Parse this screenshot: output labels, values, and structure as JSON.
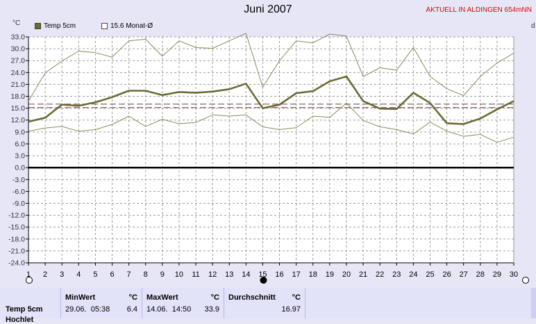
{
  "header": {
    "title": "Juni 2007",
    "station": "AKTUELL IN ALDINGEN 654mNN",
    "unit": "°C",
    "right_cut": "d"
  },
  "legend": {
    "series_label": "Temp 5cm",
    "avg_label": "15.6 Monat-Ø"
  },
  "colors": {
    "main": "#6b6b36",
    "band": "#8a8a5a",
    "avg": "#6b3b3b",
    "grid": "#9a9a9a",
    "zero": "#000000"
  },
  "chart_data": {
    "type": "line",
    "title": "Juni 2007",
    "ylabel": "°C",
    "ylim": [
      -24,
      33
    ],
    "yticks": [
      "33.0",
      "30.0",
      "27.0",
      "24.0",
      "21.0",
      "18.0",
      "15.0",
      "12.0",
      "9.0",
      "6.0",
      "3.0",
      "0.0",
      "-3.0",
      "-6.0",
      "-9.0",
      "-12.0",
      "-15.0",
      "-18.0",
      "-21.0",
      "-24.0"
    ],
    "x": [
      "1",
      "2",
      "3",
      "4",
      "5",
      "6",
      "7",
      "8",
      "9",
      "10",
      "11",
      "12",
      "13",
      "14",
      "15",
      "16",
      "17",
      "18",
      "19",
      "20",
      "21",
      "22",
      "23",
      "24",
      "25",
      "26",
      "27",
      "28",
      "29",
      "30"
    ],
    "series": [
      {
        "name": "Temp 5cm",
        "values": [
          11.6,
          12.6,
          15.9,
          15.6,
          16.5,
          17.8,
          19.4,
          19.4,
          18.3,
          19.1,
          18.9,
          19.2,
          19.8,
          21.2,
          15.0,
          15.9,
          18.8,
          19.3,
          21.8,
          23.0,
          16.8,
          14.9,
          14.8,
          18.9,
          16.3,
          11.2,
          11.0,
          12.4,
          14.7,
          16.8
        ]
      },
      {
        "values": [
          16.8,
          23.9,
          26.9,
          29.4,
          29.0,
          27.9,
          32.0,
          32.4,
          28.1,
          32.0,
          30.3,
          30.1,
          32.0,
          33.9,
          20.3,
          27.0,
          32.0,
          31.5,
          33.7,
          33.2,
          23.0,
          25.2,
          24.6,
          30.3,
          23.0,
          19.9,
          18.2,
          23.0,
          26.4,
          28.9
        ]
      },
      {
        "values": [
          9.2,
          10.0,
          10.4,
          9.2,
          9.6,
          10.9,
          13.0,
          10.4,
          12.2,
          11.1,
          11.4,
          13.3,
          13.0,
          13.3,
          10.3,
          9.6,
          10.1,
          13.0,
          12.7,
          16.3,
          11.9,
          10.3,
          9.6,
          8.5,
          11.5,
          9.2,
          7.9,
          8.4,
          6.4,
          7.7
        ]
      }
    ],
    "avg_line": 15.6,
    "grid": true,
    "legend_position": "top-left"
  },
  "table": {
    "row_label": "Temp 5cm",
    "row_label2": "Hochlet",
    "min": {
      "header": "MinWert",
      "unit": "°C",
      "time": "29.06.  05:38",
      "value": "6.4"
    },
    "max": {
      "header": "MaxWert",
      "unit": "°C",
      "time": "14.06.  14:50",
      "value": "33.9"
    },
    "avg": {
      "header": "Durchschnitt",
      "unit": "°C",
      "value": "16.97"
    }
  }
}
